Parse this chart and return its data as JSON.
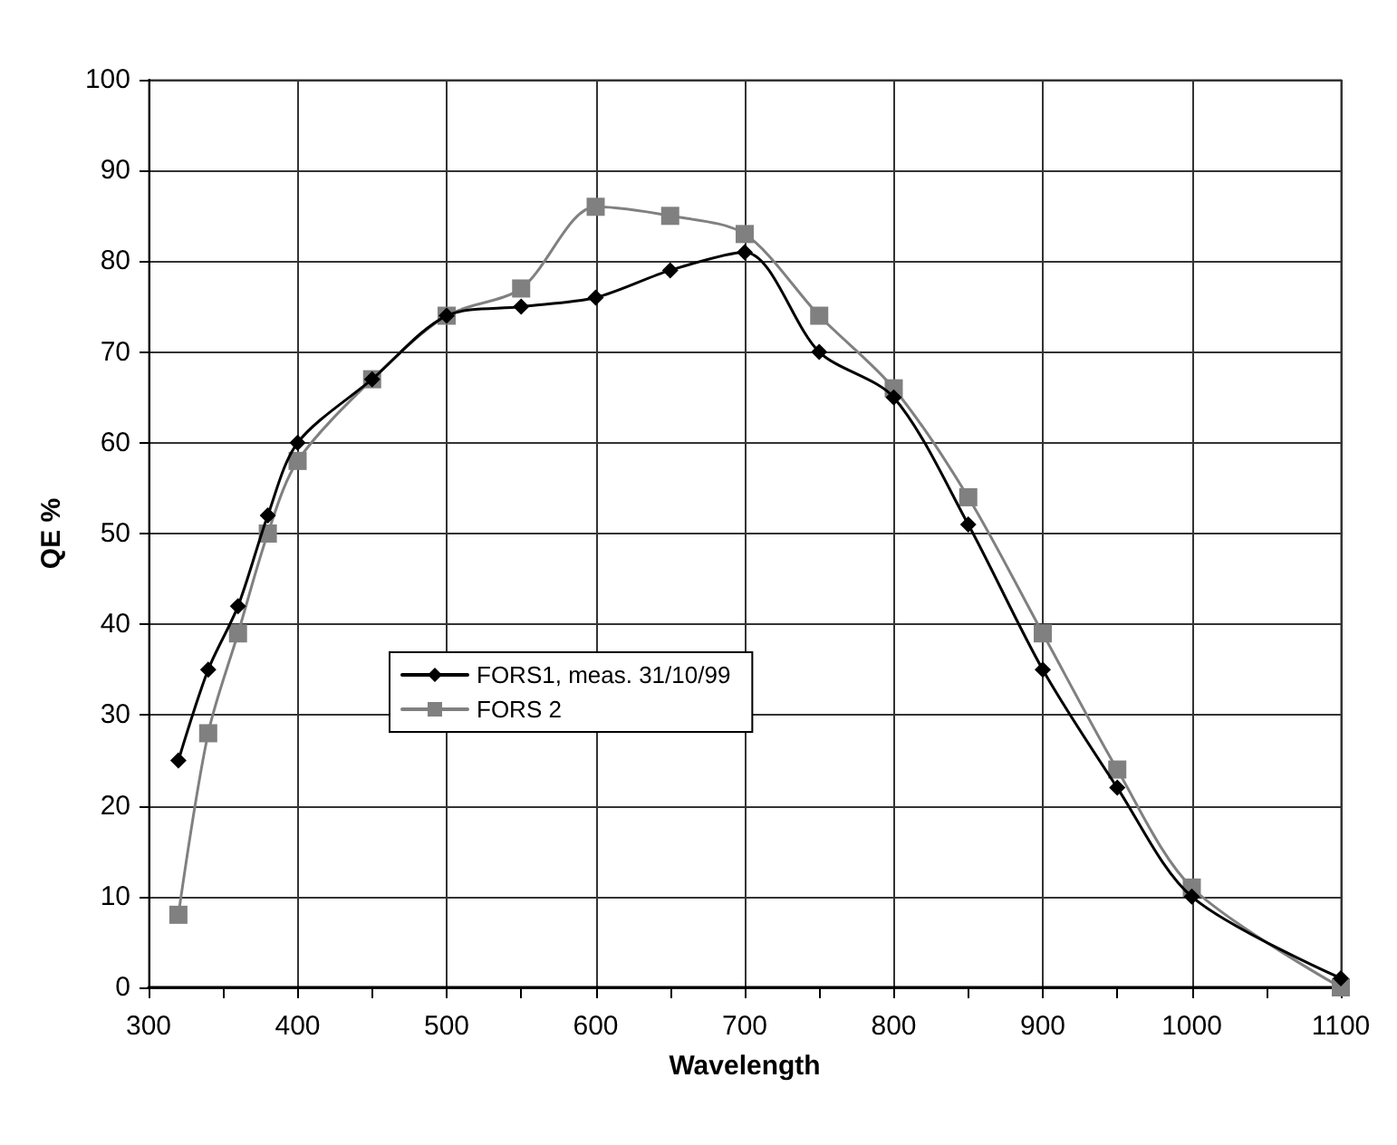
{
  "chart_data": {
    "type": "line",
    "xlabel": "Wavelength",
    "ylabel": "QE %",
    "xlim": [
      300,
      1100
    ],
    "xticks": [
      300,
      400,
      500,
      600,
      700,
      800,
      900,
      1000,
      1100
    ],
    "ylim": [
      0,
      100
    ],
    "yticks": [
      0,
      10,
      20,
      30,
      40,
      50,
      60,
      70,
      80,
      90,
      100
    ],
    "grid": true,
    "legend": "left",
    "line_style": "solid",
    "series": [
      {
        "name": "FORS1, meas. 31/10/99",
        "color": "#000000",
        "marker": "diamond",
        "x": [
          320,
          340,
          360,
          380,
          400,
          450,
          500,
          550,
          600,
          650,
          700,
          750,
          800,
          850,
          900,
          950,
          1000,
          1100
        ],
        "values": [
          25,
          35,
          42,
          52,
          60,
          67,
          74,
          75,
          76,
          79,
          81,
          70,
          65,
          51,
          35,
          22,
          10,
          1
        ]
      },
      {
        "name": "FORS 2",
        "color": "#808080",
        "marker": "square",
        "x": [
          320,
          340,
          360,
          380,
          400,
          450,
          500,
          550,
          600,
          650,
          700,
          750,
          800,
          850,
          900,
          950,
          1000,
          1100
        ],
        "values": [
          8,
          28,
          39,
          50,
          58,
          67,
          74,
          77,
          86,
          85,
          83,
          74,
          66,
          54,
          39,
          24,
          11,
          0
        ]
      }
    ]
  }
}
